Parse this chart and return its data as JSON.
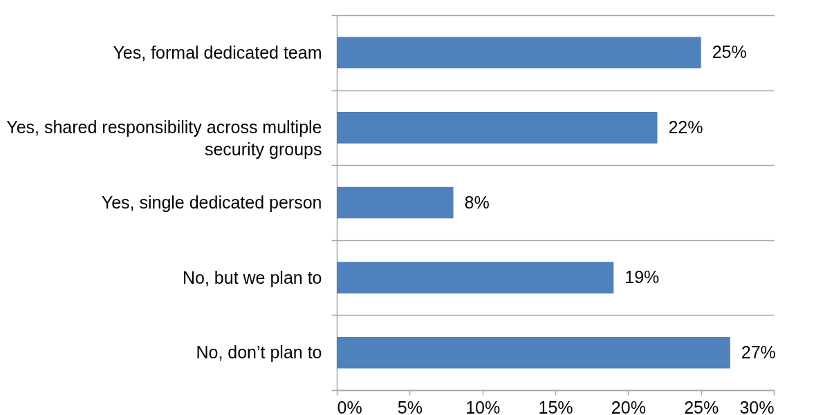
{
  "chart_data": {
    "type": "bar",
    "orientation": "horizontal",
    "categories": [
      "Yes, formal dedicated team",
      "Yes, shared responsibility across multiple security groups",
      "Yes, single dedicated person",
      "No, but we plan to",
      "No, don’t plan to"
    ],
    "values": [
      25,
      22,
      8,
      19,
      27
    ],
    "value_labels": [
      "25%",
      "22%",
      "8%",
      "19%",
      "27%"
    ],
    "color": "#4f81bd",
    "xlim": [
      0,
      30
    ],
    "xticks": [
      {
        "value": 0,
        "label": "0%"
      },
      {
        "value": 5,
        "label": "5%"
      },
      {
        "value": 10,
        "label": "10%"
      },
      {
        "value": 15,
        "label": "15%"
      },
      {
        "value": 20,
        "label": "20%"
      },
      {
        "value": 25,
        "label": "25%"
      },
      {
        "value": 30,
        "label": "30%"
      }
    ],
    "grid": "y"
  }
}
